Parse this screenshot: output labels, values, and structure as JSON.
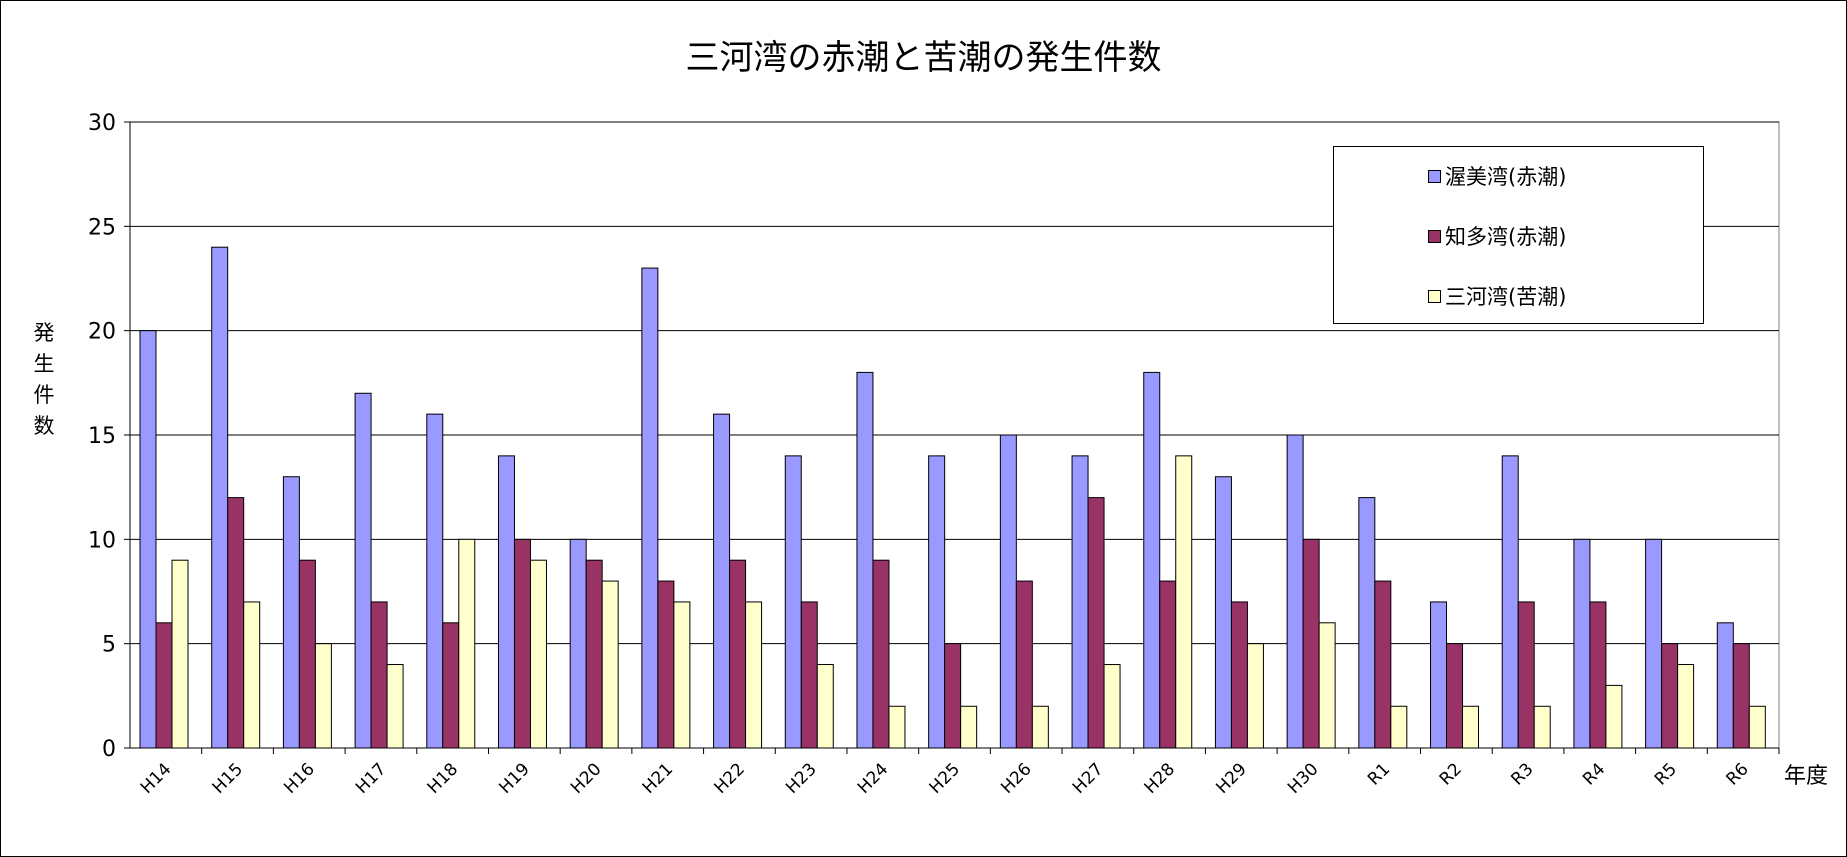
{
  "chart_data": {
    "type": "bar",
    "title": "三河湾の赤潮と苦潮の発生件数",
    "ylabel": "発生件数",
    "xlabel": "年度",
    "ylim": [
      0,
      30
    ],
    "yticks": [
      0,
      5,
      10,
      15,
      20,
      25,
      30
    ],
    "grid": true,
    "legend_position": "top-right",
    "categories": [
      "H14",
      "H15",
      "H16",
      "H17",
      "H18",
      "H19",
      "H20",
      "H21",
      "H22",
      "H23",
      "H24",
      "H25",
      "H26",
      "H27",
      "H28",
      "H29",
      "H30",
      "R1",
      "R2",
      "R3",
      "R4",
      "R5",
      "R6"
    ],
    "series": [
      {
        "name": "渥美湾(赤潮)",
        "color": "#9999FF",
        "values": [
          20,
          24,
          13,
          17,
          16,
          14,
          10,
          23,
          16,
          14,
          18,
          14,
          15,
          14,
          18,
          13,
          15,
          12,
          7,
          14,
          10,
          10,
          6
        ]
      },
      {
        "name": "知多湾(赤潮)",
        "color": "#993366",
        "values": [
          6,
          12,
          9,
          7,
          6,
          10,
          9,
          8,
          9,
          7,
          9,
          5,
          8,
          12,
          8,
          7,
          10,
          8,
          5,
          7,
          7,
          5,
          5
        ]
      },
      {
        "name": "三河湾(苦潮)",
        "color": "#FFFFCC",
        "values": [
          9,
          7,
          5,
          4,
          10,
          9,
          8,
          7,
          7,
          4,
          2,
          2,
          2,
          4,
          14,
          5,
          6,
          2,
          2,
          2,
          3,
          4,
          2
        ]
      }
    ]
  }
}
